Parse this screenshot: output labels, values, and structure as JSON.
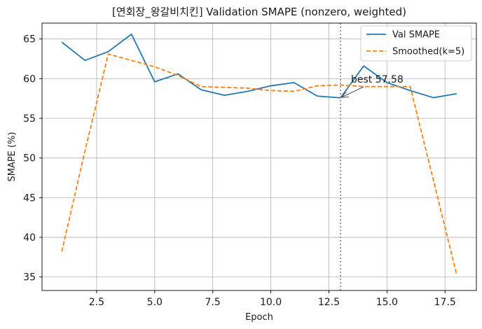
{
  "chart_data": {
    "type": "line",
    "title": "[연회장_왕갈비치킨] Validation SMAPE (nonzero, weighted)",
    "xlabel": "Epoch",
    "ylabel": "SMAPE (%)",
    "xlim": [
      0.15,
      18.85
    ],
    "ylim": [
      33.3,
      67.0
    ],
    "xticks": [
      2.5,
      5.0,
      7.5,
      10.0,
      12.5,
      15.0,
      17.5
    ],
    "xtick_labels": [
      "2.5",
      "5.0",
      "7.5",
      "10.0",
      "12.5",
      "15.0",
      "17.5"
    ],
    "yticks": [
      35,
      40,
      45,
      50,
      55,
      60,
      65
    ],
    "ytick_labels": [
      "35",
      "40",
      "45",
      "50",
      "55",
      "60",
      "65"
    ],
    "grid": true,
    "legend_position": "upper right",
    "series": [
      {
        "name": "Val SMAPE",
        "color": "#1f77b4",
        "style": "solid",
        "x": [
          1,
          2,
          3,
          4,
          5,
          6,
          7,
          8,
          9,
          10,
          11,
          12,
          13,
          14,
          15,
          16,
          17,
          18
        ],
        "values": [
          64.6,
          62.3,
          63.4,
          65.6,
          59.6,
          60.6,
          58.6,
          57.9,
          58.4,
          59.1,
          59.5,
          57.8,
          57.58,
          61.6,
          59.5,
          58.5,
          57.6,
          58.1
        ]
      },
      {
        "name": "Smoothed(k=5)",
        "color": "#ff7f0e",
        "style": "dashed",
        "x": [
          1,
          2,
          3,
          4,
          5,
          6,
          7,
          8,
          9,
          10,
          11,
          12,
          13,
          14,
          15,
          16,
          17,
          18
        ],
        "values": [
          38.2,
          50.9,
          63.1,
          62.3,
          61.5,
          60.4,
          59.0,
          58.9,
          58.8,
          58.5,
          58.4,
          59.1,
          59.2,
          59.0,
          59.0,
          59.0,
          47.2,
          35.3
        ]
      }
    ],
    "vline": {
      "x": 13,
      "color": "#808080",
      "style": "dotted"
    },
    "annotation": {
      "text": "best 57.58",
      "x": 13,
      "y": 57.58,
      "text_x": 13.45,
      "text_y": 59.5
    }
  }
}
